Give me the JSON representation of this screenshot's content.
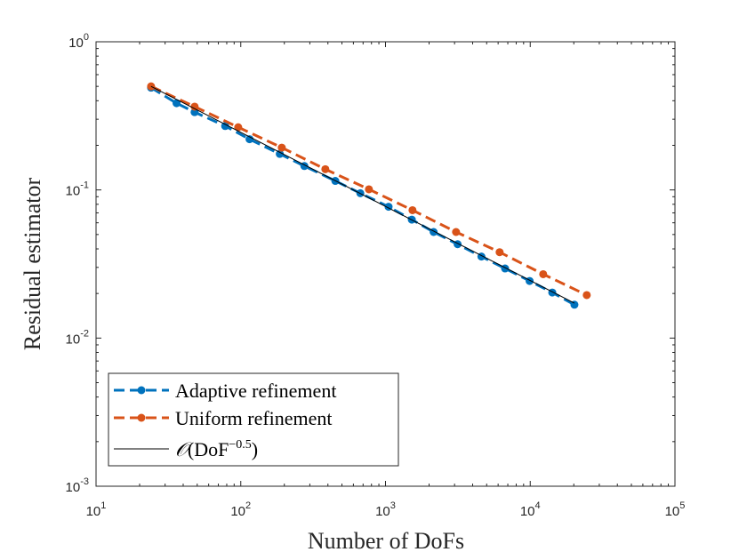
{
  "chart_data": {
    "type": "line",
    "title": "",
    "xlabel": "Number of DoFs",
    "ylabel": "Residual estimator",
    "x_scale": "log",
    "y_scale": "log",
    "xlim": [
      10,
      100000
    ],
    "ylim": [
      0.001,
      1
    ],
    "grid": false,
    "legend_position": "bottom-left",
    "x_ticks": [
      {
        "base": "10",
        "exp": "1"
      },
      {
        "base": "10",
        "exp": "2"
      },
      {
        "base": "10",
        "exp": "3"
      },
      {
        "base": "10",
        "exp": "4"
      },
      {
        "base": "10",
        "exp": "5"
      }
    ],
    "y_ticks": [
      {
        "base": "10",
        "exp": "-3"
      },
      {
        "base": "10",
        "exp": "-2"
      },
      {
        "base": "10",
        "exp": "-1"
      },
      {
        "base": "10",
        "exp": "0"
      }
    ],
    "series": [
      {
        "name": "Adaptive refinement",
        "color": "#0072BD",
        "style": "dashed-marker",
        "x": [
          24,
          36,
          48,
          78,
          115,
          186,
          275,
          450,
          670,
          1050,
          1520,
          2150,
          3150,
          4600,
          6700,
          9900,
          14200,
          20200
        ],
        "y": [
          0.49,
          0.385,
          0.335,
          0.27,
          0.22,
          0.175,
          0.145,
          0.115,
          0.095,
          0.077,
          0.063,
          0.052,
          0.043,
          0.0355,
          0.0295,
          0.0243,
          0.0203,
          0.0168
        ]
      },
      {
        "name": "Uniform refinement",
        "color": "#D95319",
        "style": "dashed-marker",
        "x": [
          24,
          48,
          96,
          192,
          384,
          768,
          1536,
          3072,
          6144,
          12288,
          24576
        ],
        "y": [
          0.5,
          0.365,
          0.265,
          0.193,
          0.138,
          0.101,
          0.073,
          0.052,
          0.038,
          0.027,
          0.0195
        ]
      },
      {
        "name": "O(DoF^{-0.5})",
        "color": "#000000",
        "style": "solid",
        "x": [
          24,
          20200
        ],
        "y": [
          0.5,
          0.0172
        ]
      }
    ],
    "legend": [
      {
        "label": "Adaptive refinement"
      },
      {
        "label": "Uniform refinement"
      },
      {
        "label_script": "𝒪",
        "label_base": "(DoF",
        "label_exp": "−0.5",
        "label_close": ")"
      }
    ]
  }
}
